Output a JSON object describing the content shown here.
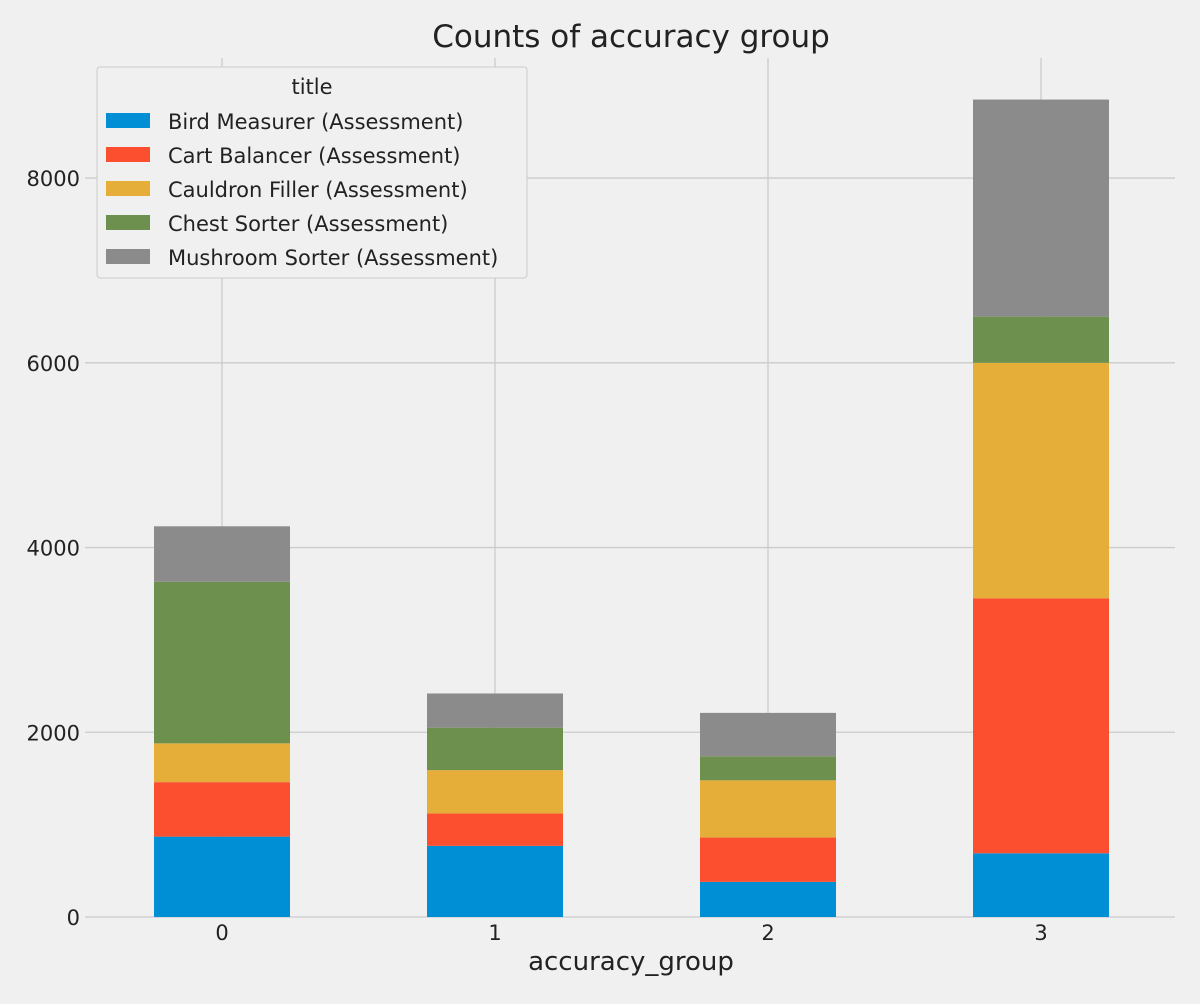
{
  "chart_data": {
    "type": "bar",
    "stacked": true,
    "title": "Counts of accuracy group",
    "xlabel": "accuracy_group",
    "ylabel": "",
    "categories": [
      "0",
      "1",
      "2",
      "3"
    ],
    "ylim": [
      0,
      9300
    ],
    "yticks": [
      0,
      2000,
      4000,
      6000,
      8000
    ],
    "grid": true,
    "legend": {
      "title": "title",
      "placement": "top-left"
    },
    "series": [
      {
        "name": "Bird Measurer (Assessment)",
        "color": "#008fd5",
        "values": [
          870,
          770,
          380,
          690
        ]
      },
      {
        "name": "Cart Balancer (Assessment)",
        "color": "#fc4f30",
        "values": [
          590,
          350,
          480,
          2760
        ]
      },
      {
        "name": "Cauldron Filler (Assessment)",
        "color": "#e5ae38",
        "values": [
          420,
          470,
          620,
          2550
        ]
      },
      {
        "name": "Chest Sorter (Assessment)",
        "color": "#6d904f",
        "values": [
          1750,
          460,
          260,
          500
        ]
      },
      {
        "name": "Mushroom Sorter (Assessment)",
        "color": "#8b8b8b",
        "values": [
          600,
          370,
          470,
          2350
        ]
      }
    ]
  },
  "colors": {
    "background": "#f0f0f0",
    "grid": "#cbcbcb",
    "text": "#222222"
  }
}
